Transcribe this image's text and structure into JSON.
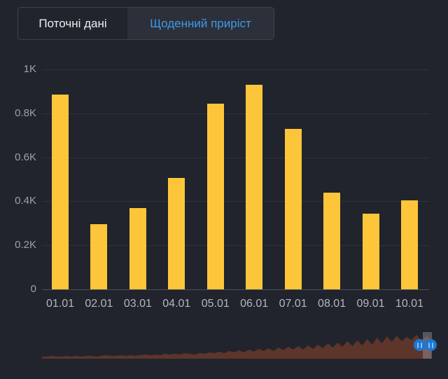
{
  "tabs": {
    "items": [
      {
        "label": "Поточні дані",
        "active": false
      },
      {
        "label": "Щоденний приріст",
        "active": true
      }
    ]
  },
  "chart_data": {
    "type": "bar",
    "title": "",
    "xlabel": "",
    "ylabel": "",
    "categories": [
      "01.01",
      "02.01",
      "03.01",
      "04.01",
      "05.01",
      "06.01",
      "07.01",
      "08.01",
      "09.01",
      "10.01"
    ],
    "values": [
      885,
      295,
      370,
      505,
      845,
      930,
      730,
      440,
      345,
      405
    ],
    "ylim": [
      0,
      1000
    ],
    "y_ticks": [
      {
        "value": 0,
        "label": "0"
      },
      {
        "value": 200,
        "label": "0.2K"
      },
      {
        "value": 400,
        "label": "0.4K"
      },
      {
        "value": 600,
        "label": "0.6K"
      },
      {
        "value": 800,
        "label": "0.8K"
      },
      {
        "value": 1000,
        "label": "1K"
      }
    ],
    "grid": true,
    "legend": "none",
    "bar_color": "#fdc63a"
  },
  "navigator": {
    "type": "area",
    "description": "timeline-overview-area-rising-left-to-right",
    "fill_color": "#5d352a",
    "heights": [
      3,
      3,
      4,
      3,
      3,
      4,
      3,
      4,
      3,
      4,
      4,
      3,
      4,
      5,
      4,
      4,
      5,
      4,
      5,
      4,
      5,
      6,
      5,
      6,
      5,
      7,
      6,
      7,
      6,
      8,
      7,
      6,
      8,
      7,
      9,
      8,
      10,
      8,
      11,
      9,
      12,
      9,
      13,
      10,
      14,
      11,
      15,
      11,
      16,
      12,
      17,
      13,
      18,
      13,
      19,
      14,
      20,
      15,
      22,
      16,
      23,
      17,
      25,
      18,
      26,
      19,
      28,
      20,
      30,
      22,
      32,
      24,
      33,
      25,
      31,
      27,
      34,
      26,
      32,
      28
    ],
    "range_band_color": "rgba(168,172,182,0.38)",
    "handle_color": "#1d76d2",
    "grip_color": "#8fc0ea"
  },
  "colors": {
    "background": "#21242c",
    "active_tab_bg": "#2c303a",
    "active_tab_text": "#3e9ae8",
    "inactive_tab_text": "#eceef0",
    "gridline": "#2e323a",
    "axis_line": "#4c5058",
    "tick_text": "#9ba0ab",
    "category_text": "#b3b7bf"
  }
}
